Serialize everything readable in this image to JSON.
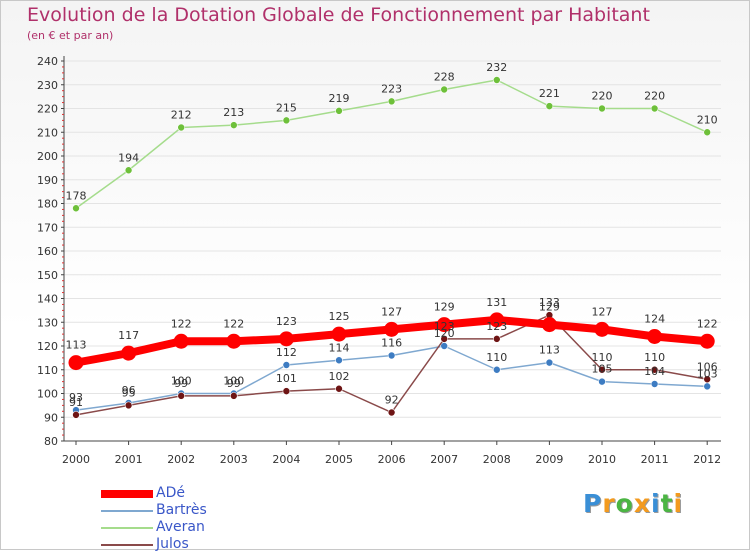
{
  "header": {
    "title": "Evolution de la Dotation Globale de Fonctionnement par Habitant",
    "subtitle": "(en € et par an)"
  },
  "colors": {
    "axis": "#444444",
    "grid": "#e4e4e4",
    "label": "#333333",
    "title": "#b0306a",
    "legend_text": "#3a57c8"
  },
  "chart_data": {
    "type": "line",
    "title": "Evolution de la Dotation Globale de Fonctionnement par Habitant",
    "subtitle": "(en € et par an)",
    "xlabel": "",
    "ylabel": "",
    "categories": [
      "2000",
      "2001",
      "2002",
      "2003",
      "2004",
      "2005",
      "2006",
      "2007",
      "2008",
      "2009",
      "2010",
      "2011",
      "2012"
    ],
    "ylim": [
      80,
      240
    ],
    "yticks": [
      80,
      90,
      100,
      110,
      120,
      130,
      140,
      150,
      160,
      170,
      180,
      190,
      200,
      210,
      220,
      230,
      240
    ],
    "grid": true,
    "legend_position": "bottom-left",
    "series": [
      {
        "name": "ADé",
        "color": "#ff0000",
        "point_color": "#ff0000",
        "line_width": 8,
        "marker": 7.5,
        "values": [
          113,
          117,
          122,
          122,
          123,
          125,
          127,
          129,
          131,
          129,
          127,
          124,
          122
        ]
      },
      {
        "name": "Bartrès",
        "color": "#7fa8d0",
        "point_color": "#3d7cc2",
        "line_width": 1.5,
        "marker": 3.5,
        "values": [
          93,
          96,
          100,
          100,
          112,
          114,
          116,
          120,
          110,
          113,
          105,
          104,
          103
        ]
      },
      {
        "name": "Averan",
        "color": "#a5dc8c",
        "point_color": "#6ec03a",
        "line_width": 1.5,
        "marker": 3.5,
        "values": [
          178,
          194,
          212,
          213,
          215,
          219,
          223,
          228,
          232,
          221,
          220,
          220,
          210
        ]
      },
      {
        "name": "Julos",
        "color": "#8a4a4a",
        "point_color": "#6e1414",
        "line_width": 1.5,
        "marker": 3.5,
        "values": [
          91,
          95,
          99,
          99,
          101,
          102,
          92,
          123,
          123,
          133,
          110,
          110,
          106
        ]
      }
    ]
  },
  "logo": {
    "letters": [
      {
        "ch": "P",
        "color": "#3a8fd6"
      },
      {
        "ch": "r",
        "color": "#f39a1e"
      },
      {
        "ch": "o",
        "color": "#4bb543"
      },
      {
        "ch": "x",
        "color": "#f39a1e"
      },
      {
        "ch": "i",
        "color": "#3a8fd6"
      },
      {
        "ch": "t",
        "color": "#4bb543"
      },
      {
        "ch": "i",
        "color": "#f39a1e"
      }
    ]
  }
}
